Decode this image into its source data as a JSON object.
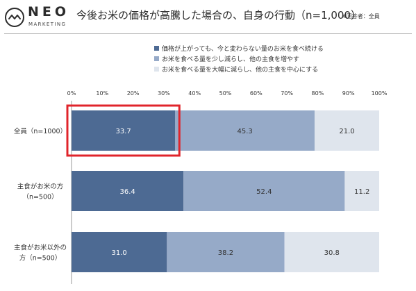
{
  "brand": {
    "name": "NEO",
    "tagline": "MARKETING",
    "logo_icon": "neo-wave-circle-icon"
  },
  "title": "今後お米の価格が高騰した場合の、自身の行動（n=1,000）",
  "title_note": "※回答者：全員",
  "colors": {
    "series1": "#4d6a93",
    "series2": "#96aac8",
    "series3": "#dfe5ed",
    "highlight_box": "#e0242b",
    "bar_text_dark": "#333333",
    "bar_text_light": "#ffffff"
  },
  "chart_data": {
    "type": "bar",
    "orientation": "horizontal",
    "stacked": true,
    "percent_stacked": true,
    "x_ticks": [
      "0%",
      "10%",
      "20%",
      "30%",
      "40%",
      "50%",
      "60%",
      "70%",
      "80%",
      "90%",
      "100%"
    ],
    "xlim": [
      0,
      100
    ],
    "categories": [
      [
        "全員（n=1000）"
      ],
      [
        "主食がお米の方",
        "（n=500）"
      ],
      [
        "主食がお米以外の",
        "方（n=500）"
      ]
    ],
    "series": [
      {
        "name": "価格が上がっても、今と変わらない量のお米を食べ続ける",
        "values": [
          33.7,
          36.4,
          31.0
        ]
      },
      {
        "name": "お米を食べる量を少し減らし、他の主食を増やす",
        "values": [
          45.3,
          52.4,
          38.2
        ]
      },
      {
        "name": "お米を食べる量を大幅に減らし、他の主食を中心にする",
        "values": [
          21.0,
          11.2,
          30.8
        ]
      }
    ],
    "value_labels": [
      [
        "33.7",
        "45.3",
        "21.0"
      ],
      [
        "36.4",
        "52.4",
        "11.2"
      ],
      [
        "31.0",
        "38.2",
        "30.8"
      ]
    ],
    "highlight": {
      "category_index": 0,
      "series_index": 0
    },
    "legend_position": "top",
    "grid": false
  }
}
